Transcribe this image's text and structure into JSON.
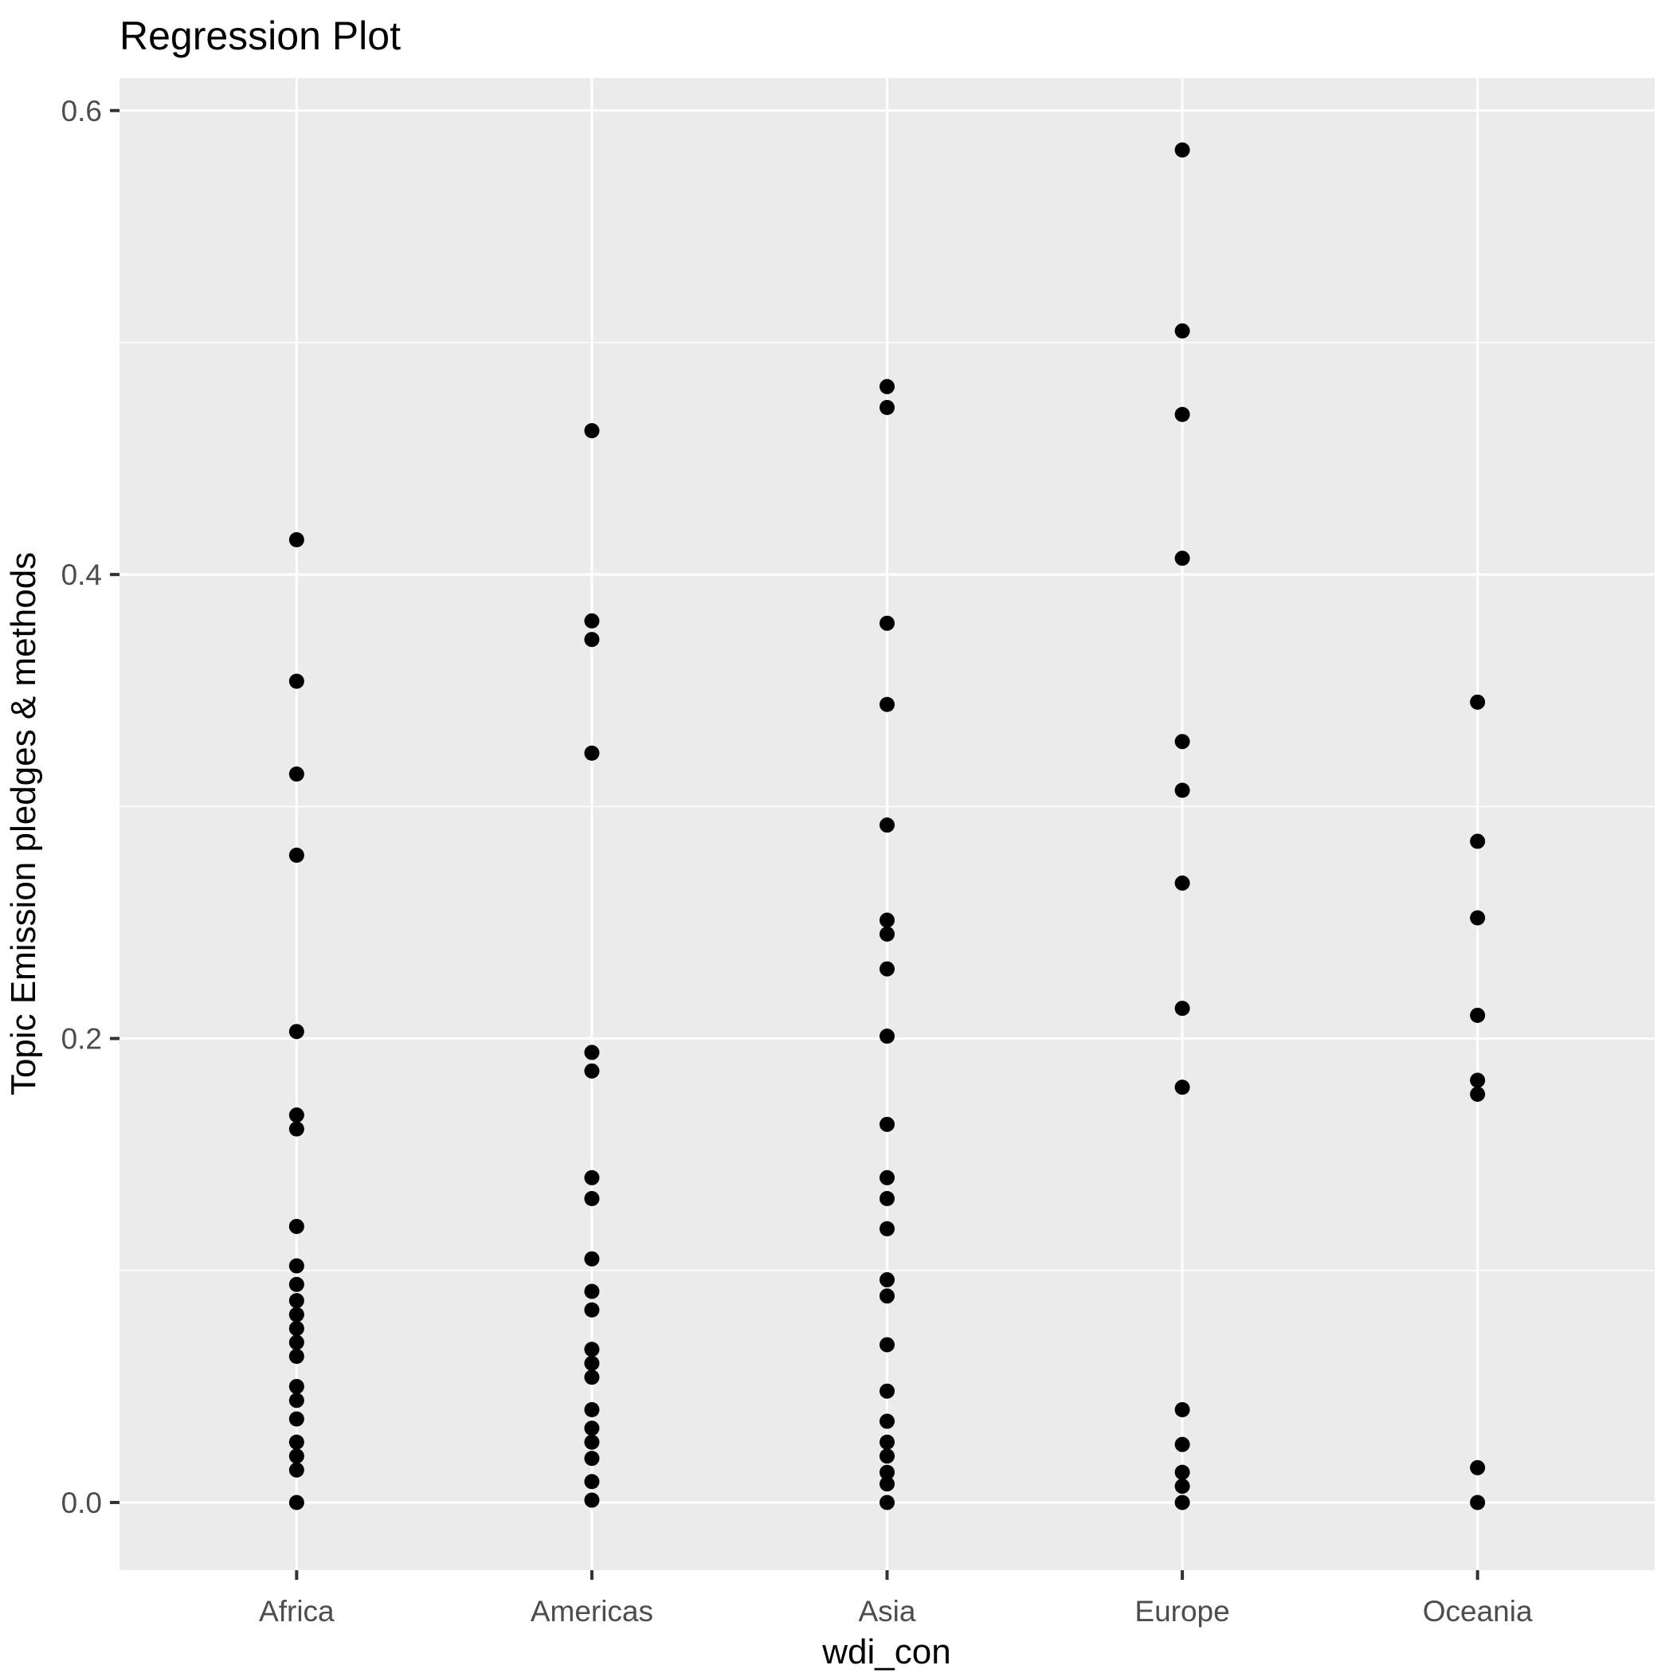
{
  "title": "Regression Plot",
  "x_axis_title": "wdi_con",
  "y_axis_title": "Topic Emission pledges & methods",
  "colors": {
    "background": "#FFFFFF",
    "panel_background": "#EBEBEB",
    "gridline": "#FFFFFF",
    "point": "#000000",
    "tick_label_text": "#4D4D4D",
    "tick_mark": "#333333",
    "title_text": "#000000"
  },
  "chart_data": {
    "type": "scatter",
    "title": "Regression Plot",
    "xlabel": "wdi_con",
    "ylabel": "Topic Emission pledges & methods",
    "categories": [
      "Africa",
      "Americas",
      "Asia",
      "Europe",
      "Oceania"
    ],
    "y_tick_labels": [
      "0.0",
      "0.2",
      "0.4",
      "0.6"
    ],
    "y_tick_values": [
      0.0,
      0.2,
      0.4,
      0.6
    ],
    "y_minor_tick_values": [
      0.1,
      0.3,
      0.5
    ],
    "ylim": [
      -0.0292,
      0.614
    ],
    "grid": true,
    "legend_position": "none",
    "series": [
      {
        "name": "Africa",
        "values": [
          0.415,
          0.354,
          0.314,
          0.279,
          0.203,
          0.167,
          0.161,
          0.119,
          0.102,
          0.094,
          0.087,
          0.081,
          0.075,
          0.069,
          0.063,
          0.05,
          0.044,
          0.036,
          0.026,
          0.02,
          0.014,
          0.0
        ]
      },
      {
        "name": "Americas",
        "values": [
          0.462,
          0.38,
          0.372,
          0.323,
          0.194,
          0.186,
          0.14,
          0.131,
          0.105,
          0.091,
          0.083,
          0.066,
          0.06,
          0.054,
          0.04,
          0.032,
          0.026,
          0.019,
          0.009,
          0.001
        ]
      },
      {
        "name": "Asia",
        "values": [
          0.481,
          0.472,
          0.379,
          0.344,
          0.292,
          0.251,
          0.245,
          0.23,
          0.201,
          0.163,
          0.14,
          0.131,
          0.118,
          0.096,
          0.089,
          0.068,
          0.048,
          0.035,
          0.026,
          0.02,
          0.013,
          0.008,
          0.0
        ]
      },
      {
        "name": "Europe",
        "values": [
          0.583,
          0.505,
          0.469,
          0.407,
          0.328,
          0.307,
          0.267,
          0.213,
          0.179,
          0.04,
          0.025,
          0.013,
          0.007,
          0.0
        ]
      },
      {
        "name": "Oceania",
        "values": [
          0.345,
          0.285,
          0.252,
          0.21,
          0.182,
          0.176,
          0.015,
          0.0
        ]
      }
    ]
  }
}
